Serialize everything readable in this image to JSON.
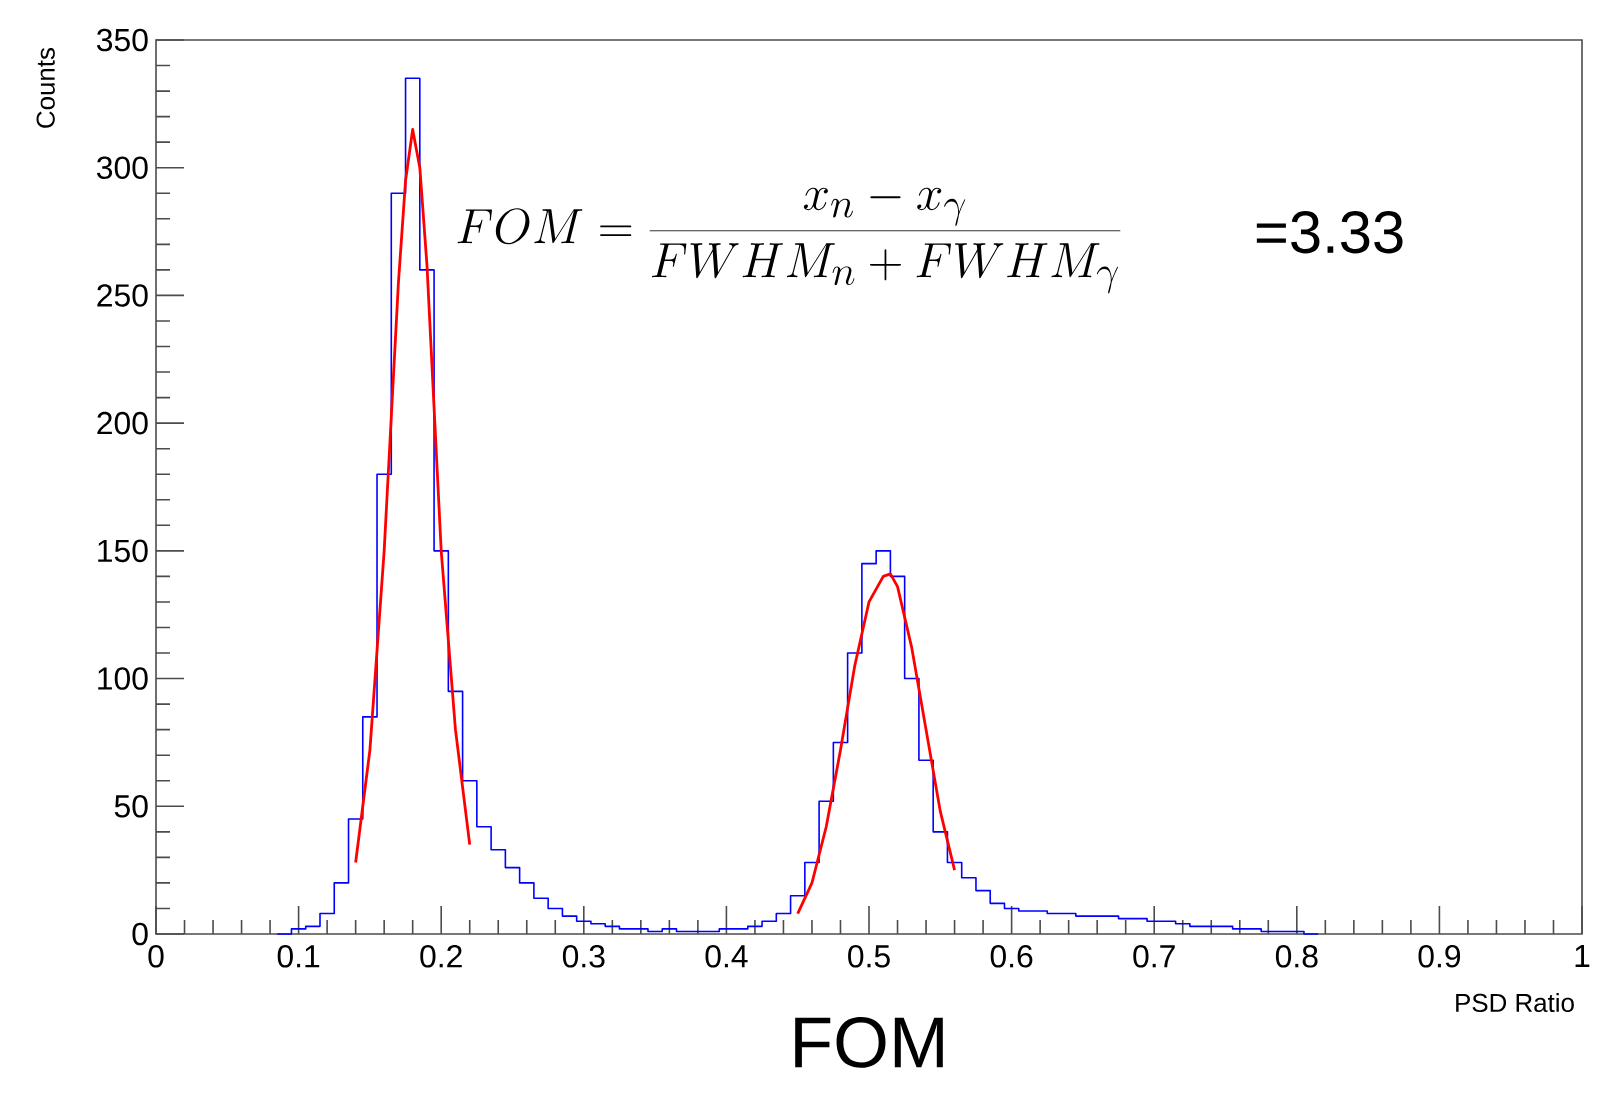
{
  "chart_data": {
    "type": "histogram",
    "title": "FOM",
    "xlabel": "PSD Ratio",
    "ylabel": "Counts",
    "annotations": [
      "FOM = \\frac{x_n - x_\\gamma}{FWHM_n + FWHM_\\gamma}",
      "=3.33"
    ],
    "color": "#0000ff",
    "bins": [
      0.085,
      0.095,
      0.105,
      0.115,
      0.125,
      0.135,
      0.145,
      0.155,
      0.165,
      0.175,
      0.185,
      0.195,
      0.205,
      0.215,
      0.225,
      0.235,
      0.245,
      0.255,
      0.265,
      0.275,
      0.285,
      0.295,
      0.305,
      0.315,
      0.325,
      0.335,
      0.345,
      0.355,
      0.365,
      0.375,
      0.385,
      0.395,
      0.405,
      0.415,
      0.425,
      0.435,
      0.445,
      0.455,
      0.465,
      0.475,
      0.485,
      0.495,
      0.505,
      0.515,
      0.525,
      0.535,
      0.545,
      0.555,
      0.565,
      0.575,
      0.585,
      0.595,
      0.605,
      0.615,
      0.625,
      0.635,
      0.645,
      0.655,
      0.665,
      0.675,
      0.685,
      0.695,
      0.705,
      0.715,
      0.725,
      0.735,
      0.745,
      0.755,
      0.765,
      0.775,
      0.785,
      0.795,
      0.805,
      0.815
    ],
    "values": [
      0,
      2,
      3,
      8,
      20,
      45,
      85,
      180,
      290,
      335,
      260,
      150,
      95,
      60,
      42,
      33,
      26,
      20,
      14,
      10,
      7,
      5,
      4,
      3,
      2,
      2,
      1,
      2,
      1,
      1,
      1,
      2,
      2,
      3,
      5,
      8,
      15,
      28,
      52,
      75,
      110,
      145,
      150,
      140,
      100,
      68,
      40,
      28,
      22,
      17,
      12,
      10,
      9,
      9,
      8,
      8,
      7,
      7,
      7,
      6,
      6,
      5,
      5,
      4,
      3,
      3,
      3,
      2,
      2,
      1,
      1,
      1,
      0
    ],
    "series": [
      {
        "type": "line",
        "color": "#ff0000",
        "x": [
          0.14,
          0.15,
          0.16,
          0.17,
          0.175,
          0.18,
          0.185,
          0.19,
          0.2,
          0.21,
          0.22
        ],
        "values": [
          28,
          72,
          150,
          255,
          295,
          315,
          300,
          262,
          150,
          80,
          35
        ]
      },
      {
        "type": "line",
        "color": "#ff0000",
        "x": [
          0.45,
          0.46,
          0.47,
          0.48,
          0.49,
          0.5,
          0.51,
          0.515,
          0.52,
          0.53,
          0.54,
          0.55,
          0.56
        ],
        "values": [
          8,
          20,
          42,
          72,
          105,
          130,
          140,
          141,
          136,
          112,
          80,
          48,
          25
        ]
      }
    ],
    "xlim": [
      0,
      1
    ],
    "ylim": [
      0,
      350
    ],
    "xticks": [
      0,
      0.1,
      0.2,
      0.3,
      0.4,
      0.5,
      0.6,
      0.7,
      0.8,
      0.9,
      1
    ],
    "yticks": [
      0,
      50,
      100,
      150,
      200,
      250,
      300,
      350
    ],
    "grid": false
  }
}
